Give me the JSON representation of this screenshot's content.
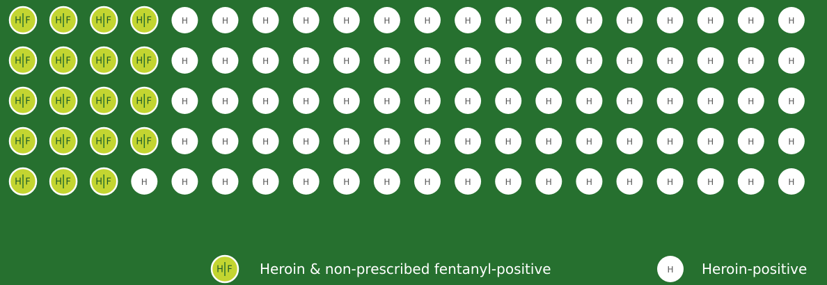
{
  "chart_data": {
    "type": "waffle",
    "series": [
      {
        "name": "Heroin & non-prescribed fentanyl-positive",
        "color": "#c3d531",
        "value": 19,
        "icon": [
          "H",
          "F"
        ]
      },
      {
        "name": "Heroin-positive",
        "color": "#ffffff",
        "value": 81,
        "icon": [
          "H"
        ]
      }
    ]
  }
}
